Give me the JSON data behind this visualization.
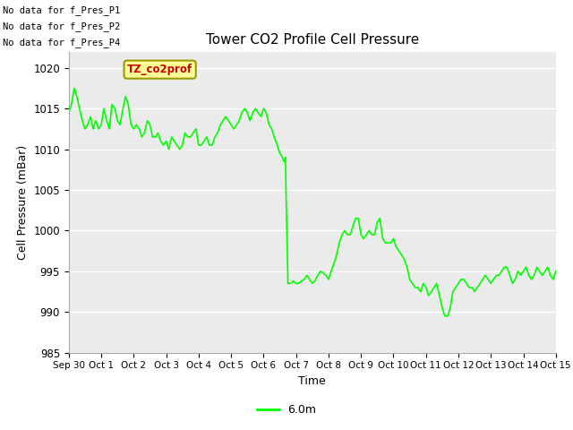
{
  "title": "Tower CO2 Profile Cell Pressure",
  "ylabel": "Cell Pressure (mBar)",
  "xlabel": "Time",
  "ylim": [
    985,
    1022
  ],
  "yticks": [
    985,
    990,
    995,
    1000,
    1005,
    1010,
    1015,
    1020
  ],
  "line_color": "#00ff00",
  "no_data_labels": [
    "No data for f_Pres_P1",
    "No data for f_Pres_P2",
    "No data for f_Pres_P4"
  ],
  "legend_label": "TZ_co2prof",
  "legend_label2": "6.0m",
  "x_tick_labels": [
    "Sep 30",
    "Oct 1",
    "Oct 2",
    "Oct 3",
    "Oct 4",
    "Oct 5",
    "Oct 6",
    "Oct 7",
    "Oct 8",
    "Oct 9",
    "Oct 10",
    "Oct 11",
    "Oct 12",
    "Oct 13",
    "Oct 14",
    "Oct 15"
  ],
  "x_positions": [
    0,
    1,
    2,
    3,
    4,
    5,
    6,
    7,
    8,
    9,
    10,
    11,
    12,
    13,
    14,
    15
  ],
  "xlim": [
    0,
    15
  ],
  "data_x": [
    0.0,
    0.08,
    0.17,
    0.25,
    0.33,
    0.42,
    0.5,
    0.58,
    0.67,
    0.75,
    0.83,
    0.92,
    1.0,
    1.08,
    1.17,
    1.25,
    1.33,
    1.42,
    1.5,
    1.58,
    1.67,
    1.75,
    1.83,
    1.92,
    2.0,
    2.08,
    2.17,
    2.25,
    2.33,
    2.42,
    2.5,
    2.58,
    2.67,
    2.75,
    2.83,
    2.92,
    3.0,
    3.08,
    3.17,
    3.25,
    3.33,
    3.42,
    3.5,
    3.58,
    3.67,
    3.75,
    3.83,
    3.92,
    4.0,
    4.08,
    4.17,
    4.25,
    4.33,
    4.42,
    4.5,
    4.58,
    4.67,
    4.75,
    4.83,
    4.92,
    5.0,
    5.08,
    5.17,
    5.25,
    5.33,
    5.42,
    5.5,
    5.58,
    5.67,
    5.75,
    5.83,
    5.92,
    6.0,
    6.08,
    6.17,
    6.25,
    6.33,
    6.42,
    6.5,
    6.58,
    6.62,
    6.63,
    6.65,
    6.67,
    6.75,
    6.83,
    6.92,
    7.0,
    7.08,
    7.17,
    7.25,
    7.33,
    7.42,
    7.5,
    7.58,
    7.67,
    7.75,
    7.83,
    7.92,
    8.0,
    8.08,
    8.17,
    8.25,
    8.33,
    8.42,
    8.5,
    8.58,
    8.67,
    8.75,
    8.83,
    8.92,
    9.0,
    9.08,
    9.17,
    9.25,
    9.33,
    9.42,
    9.5,
    9.58,
    9.67,
    9.75,
    9.83,
    9.92,
    10.0,
    10.08,
    10.17,
    10.25,
    10.33,
    10.42,
    10.5,
    10.58,
    10.67,
    10.75,
    10.83,
    10.92,
    11.0,
    11.08,
    11.17,
    11.25,
    11.33,
    11.42,
    11.5,
    11.58,
    11.67,
    11.75,
    11.83,
    11.92,
    12.0,
    12.08,
    12.17,
    12.25,
    12.33,
    12.42,
    12.5,
    12.58,
    12.67,
    12.75,
    12.83,
    12.92,
    13.0,
    13.08,
    13.17,
    13.25,
    13.33,
    13.42,
    13.5,
    13.58,
    13.67,
    13.75,
    13.83,
    13.92,
    14.0,
    14.08,
    14.17,
    14.25,
    14.33,
    14.42,
    14.5,
    14.58,
    14.67,
    14.75,
    14.83,
    14.92,
    15.0
  ],
  "data_y": [
    1014.5,
    1015.5,
    1017.5,
    1016.5,
    1015.0,
    1013.5,
    1012.5,
    1013.0,
    1014.0,
    1012.5,
    1013.5,
    1012.5,
    1013.0,
    1015.0,
    1013.5,
    1012.5,
    1015.5,
    1015.0,
    1013.5,
    1013.0,
    1015.0,
    1016.5,
    1015.5,
    1013.0,
    1012.5,
    1013.0,
    1012.5,
    1011.5,
    1012.0,
    1013.5,
    1013.0,
    1011.5,
    1011.5,
    1012.0,
    1011.0,
    1010.5,
    1011.0,
    1010.0,
    1011.5,
    1011.0,
    1010.5,
    1010.0,
    1010.5,
    1012.0,
    1011.5,
    1011.5,
    1012.0,
    1012.5,
    1010.5,
    1010.5,
    1011.0,
    1011.5,
    1010.5,
    1010.5,
    1011.5,
    1012.0,
    1013.0,
    1013.5,
    1014.0,
    1013.5,
    1013.0,
    1012.5,
    1013.0,
    1013.5,
    1014.5,
    1015.0,
    1014.5,
    1013.5,
    1014.5,
    1015.0,
    1014.5,
    1014.0,
    1015.0,
    1014.5,
    1013.0,
    1012.5,
    1011.5,
    1010.5,
    1009.5,
    1009.0,
    1008.5,
    1008.5,
    1008.5,
    1009.0,
    993.5,
    993.5,
    993.8,
    993.5,
    993.5,
    993.8,
    994.0,
    994.5,
    994.0,
    993.5,
    993.8,
    994.5,
    995.0,
    994.8,
    994.5,
    994.0,
    995.0,
    996.0,
    997.0,
    998.5,
    999.5,
    1000.0,
    999.5,
    999.5,
    1000.5,
    1001.5,
    1001.5,
    999.5,
    999.0,
    999.5,
    1000.0,
    999.5,
    999.5,
    1001.0,
    1001.5,
    999.0,
    998.5,
    998.5,
    998.5,
    999.0,
    998.0,
    997.5,
    997.0,
    996.5,
    995.5,
    994.0,
    993.5,
    993.0,
    993.0,
    992.5,
    993.5,
    993.0,
    992.0,
    992.5,
    993.0,
    993.5,
    992.0,
    990.5,
    989.5,
    989.5,
    990.5,
    992.5,
    993.0,
    993.5,
    994.0,
    994.0,
    993.5,
    993.0,
    993.0,
    992.5,
    993.0,
    993.5,
    994.0,
    994.5,
    994.0,
    993.5,
    994.0,
    994.5,
    994.5,
    995.0,
    995.5,
    995.5,
    994.5,
    993.5,
    994.0,
    995.0,
    994.5,
    995.0,
    995.5,
    994.5,
    994.0,
    994.5,
    995.5,
    995.0,
    994.5,
    995.0,
    995.5,
    994.5,
    994.0,
    995.0
  ]
}
